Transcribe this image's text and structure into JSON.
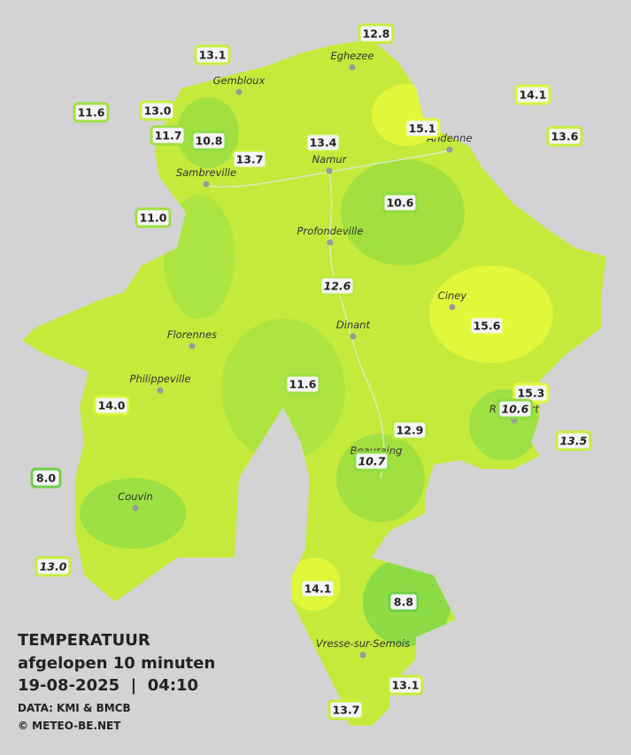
{
  "header": {
    "title": "TEMPERATUUR",
    "subtitle": "afgelopen 10 minuten",
    "datetime": "19-08-2025  |  04:10",
    "source": "DATA: KMI & BMCB",
    "credit": "© METEO-BE.NET"
  },
  "cities": [
    "Eghezee",
    "Gembloux",
    "Andenne",
    "Namur",
    "Sambreville",
    "Profondeville",
    "Ciney",
    "Dinant",
    "Florennes",
    "Philippeville",
    "Rochefort",
    "Beauraing",
    "Couvin",
    "Vresse-sur-Semois"
  ],
  "stations": [
    {
      "label": "12.8",
      "italic": false,
      "color": "#c6ee3c"
    },
    {
      "label": "13.1",
      "italic": false,
      "color": "#c6ee3c"
    },
    {
      "label": "14.1",
      "italic": false,
      "color": "#d9f53a"
    },
    {
      "label": "11.6",
      "italic": false,
      "color": "#9fe042"
    },
    {
      "label": "13.0",
      "italic": false,
      "color": "#c6ee3c"
    },
    {
      "label": "15.1",
      "italic": false,
      "color": "#e6f83a"
    },
    {
      "label": "13.6",
      "italic": false,
      "color": "#c6ee3c"
    },
    {
      "label": "11.7",
      "italic": false,
      "color": "#9fe042"
    },
    {
      "label": "10.8",
      "italic": false,
      "color": "#8edc44"
    },
    {
      "label": "13.4",
      "italic": false,
      "color": "#c6ee3c"
    },
    {
      "label": "13.7",
      "italic": false,
      "color": "#c6ee3c"
    },
    {
      "label": "11.0",
      "italic": false,
      "color": "#9fe042"
    },
    {
      "label": "10.6",
      "italic": false,
      "color": "#8edc44"
    },
    {
      "label": "12.6",
      "italic": true,
      "color": "#b8ea3e"
    },
    {
      "label": "15.6",
      "italic": false,
      "color": "#e6f83a"
    },
    {
      "label": "11.6",
      "italic": false,
      "color": "#9fe042"
    },
    {
      "label": "15.3",
      "italic": false,
      "color": "#e6f83a"
    },
    {
      "label": "14.0",
      "italic": false,
      "color": "#d9f53a"
    },
    {
      "label": "10.6",
      "italic": true,
      "color": "#8edc44"
    },
    {
      "label": "12.9",
      "italic": false,
      "color": "#b8ea3e"
    },
    {
      "label": "13.5",
      "italic": true,
      "color": "#c6ee3c"
    },
    {
      "label": "10.7",
      "italic": true,
      "color": "#8edc44"
    },
    {
      "label": "8.0",
      "italic": false,
      "color": "#6fd048"
    },
    {
      "label": "13.0",
      "italic": true,
      "color": "#c6ee3c"
    },
    {
      "label": "14.1",
      "italic": false,
      "color": "#d9f53a"
    },
    {
      "label": "8.8",
      "italic": false,
      "color": "#6fd048"
    },
    {
      "label": "13.1",
      "italic": false,
      "color": "#c6ee3c"
    },
    {
      "label": "13.7",
      "italic": false,
      "color": "#c6ee3c"
    }
  ]
}
